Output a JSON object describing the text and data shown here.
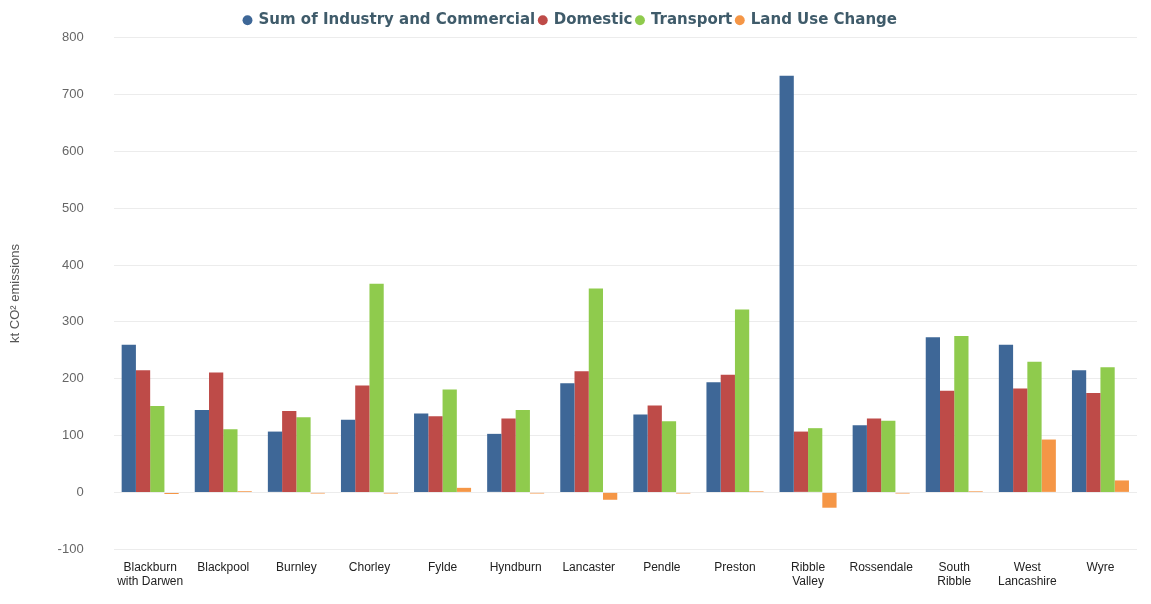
{
  "chart_data": {
    "type": "bar",
    "ylabel": "kt CO² emissions",
    "legend": "top",
    "grid": "y",
    "categories": [
      "Blackburn with Darwen",
      "Blackpool",
      "Burnley",
      "Chorley",
      "Fylde",
      "Hyndburn",
      "Lancaster",
      "Pendle",
      "Preston",
      "Ribble Valley",
      "Rossendale",
      "South Ribble",
      "West Lancashire",
      "Wyre"
    ],
    "series": [
      {
        "name": "Sum of Industry and Commercial",
        "color": "#3e6797",
        "values": [
          260,
          145,
          107,
          128,
          139,
          103,
          192,
          137,
          194,
          733,
          118,
          273,
          260,
          215
        ]
      },
      {
        "name": "Domestic",
        "color": "#be4b48",
        "values": [
          215,
          211,
          143,
          188,
          134,
          130,
          213,
          153,
          207,
          107,
          130,
          179,
          183,
          175
        ]
      },
      {
        "name": "Transport",
        "color": "#8fcb4d",
        "values": [
          152,
          111,
          132,
          367,
          181,
          145,
          359,
          125,
          322,
          113,
          126,
          275,
          230,
          220
        ]
      },
      {
        "name": "Land Use Change",
        "color": "#f59646",
        "values": [
          -3,
          2,
          -2,
          -2,
          8,
          -2,
          -13,
          -2,
          2,
          -27,
          -2,
          2,
          93,
          21
        ]
      }
    ],
    "ylim": [
      -100,
      800
    ],
    "yticks": [
      -100,
      0,
      100,
      200,
      300,
      400,
      500,
      600,
      700,
      800
    ]
  }
}
